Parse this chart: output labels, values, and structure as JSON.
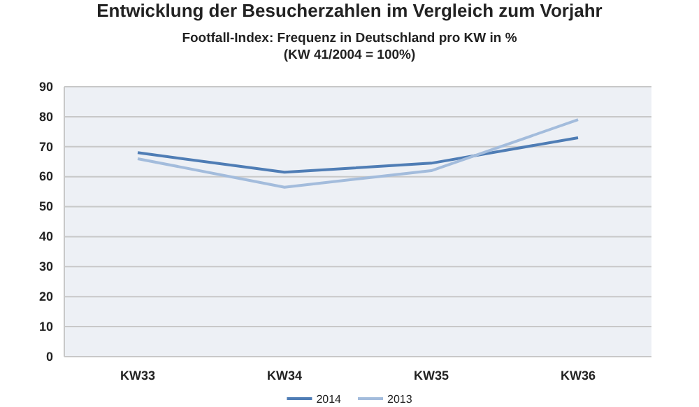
{
  "chart_data": {
    "type": "line",
    "title": "Entwicklung der Besucherzahlen im Vergleich zum Vorjahr",
    "subtitle": "Footfall-Index: Frequenz in Deutschland pro KW in %\n(KW 41/2004 = 100%)",
    "categories": [
      "KW33",
      "KW34",
      "KW35",
      "KW36"
    ],
    "series": [
      {
        "name": "2014",
        "color": "#4f7db5",
        "values": [
          68,
          61.5,
          64.5,
          73
        ]
      },
      {
        "name": "2013",
        "color": "#a3bcdc",
        "values": [
          66,
          56.5,
          62,
          79
        ]
      }
    ],
    "ylim": [
      0,
      90
    ],
    "yticks": [
      0,
      10,
      20,
      30,
      40,
      50,
      60,
      70,
      80,
      90
    ],
    "grid": "y",
    "legend": "bottom",
    "marker": "none",
    "line_style": "solid"
  }
}
